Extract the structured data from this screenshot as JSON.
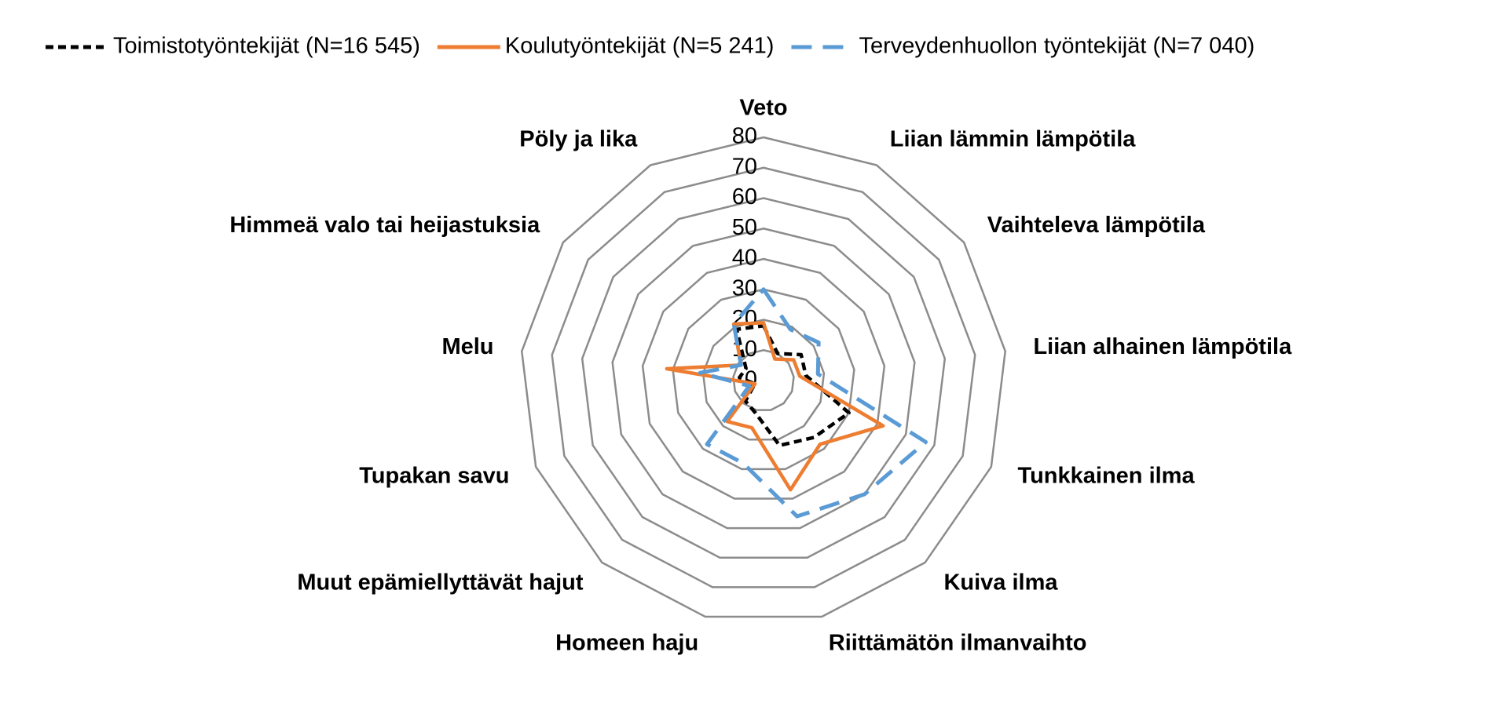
{
  "chart_data": {
    "type": "radar",
    "categories": [
      "Veto",
      "Liian lämmin lämpötila",
      "Vaihteleva lämpötila",
      "Liian alhainen lämpötila",
      "Tunkkainen ilma",
      "Kuiva ilma",
      "Riittämätön ilmanvaihto",
      "Homeen haju",
      "Muut epämiellyttävät hajut",
      "Tupakan savu",
      "Melu",
      "Himmeä valo tai heijastuksia",
      "Pöly ja lika"
    ],
    "series": [
      {
        "name": "Toimistotyöntekijät (N=16 545)",
        "color": "#000000",
        "dash": "short",
        "values": [
          18,
          10,
          15,
          14,
          30,
          25,
          22,
          11,
          9,
          3,
          8,
          7,
          19
        ]
      },
      {
        "name": "Koulutyöntekijät (N=5 241)",
        "color": "#ED7D31",
        "dash": "solid",
        "values": [
          19,
          8,
          12,
          12,
          42,
          28,
          37,
          16,
          18,
          3,
          32,
          9,
          21
        ]
      },
      {
        "name": "Terveydenhuollon työntekijät (N=7 040)",
        "color": "#5B9BD5",
        "dash": "long",
        "values": [
          30,
          19,
          22,
          18,
          57,
          50,
          46,
          28,
          28,
          5,
          21,
          9,
          21
        ]
      }
    ],
    "ylim": [
      0,
      80
    ],
    "yticks": [
      0,
      10,
      20,
      30,
      40,
      50,
      60,
      70,
      80
    ],
    "grid": true,
    "legend": "top"
  }
}
